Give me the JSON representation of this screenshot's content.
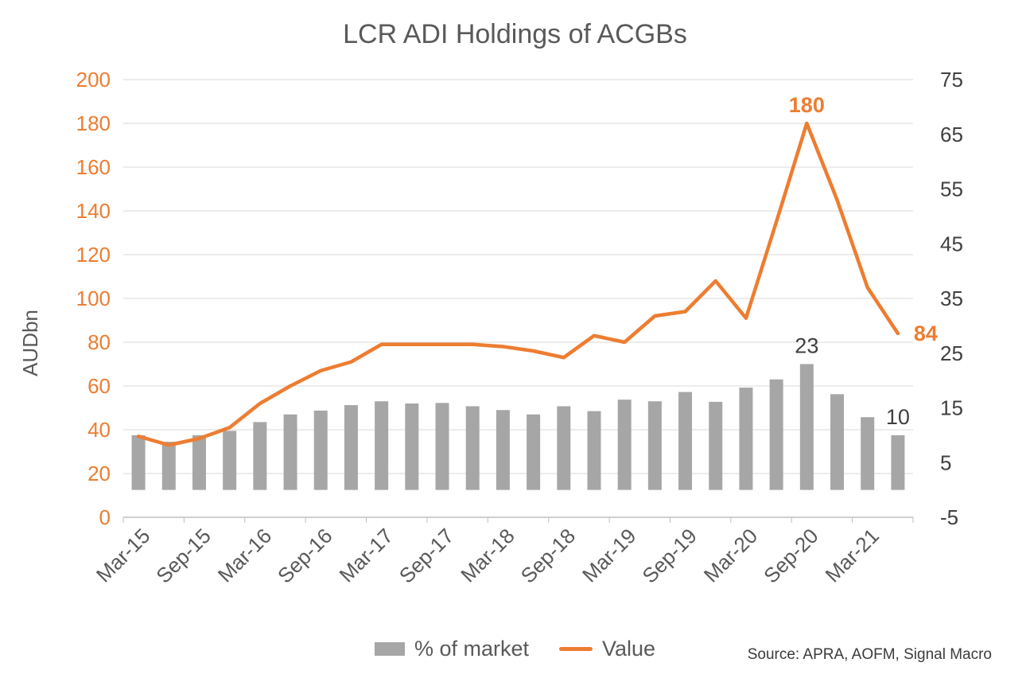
{
  "title": "LCR ADI Holdings of ACGBs",
  "source": "Source: APRA, AOFM, Signal Macro",
  "legend": [
    {
      "label": "% of market",
      "swatch": "bar",
      "color": "#A6A6A6"
    },
    {
      "label": "Value",
      "swatch": "line",
      "color": "#ED7D31"
    }
  ],
  "chart_data": {
    "type": "bar",
    "subtype": "combo bar + line, dual axis",
    "categories": [
      "Mar-15",
      "Jun-15",
      "Sep-15",
      "Dec-15",
      "Mar-16",
      "Jun-16",
      "Sep-16",
      "Dec-16",
      "Mar-17",
      "Jun-17",
      "Sep-17",
      "Dec-17",
      "Mar-18",
      "Jun-18",
      "Sep-18",
      "Dec-18",
      "Mar-19",
      "Jun-19",
      "Sep-19",
      "Dec-19",
      "Mar-20",
      "Jun-20",
      "Sep-20",
      "Dec-20",
      "Mar-21",
      "Jun-21"
    ],
    "x_tick_labels": [
      "Mar-15",
      "Sep-15",
      "Mar-16",
      "Sep-16",
      "Mar-17",
      "Sep-17",
      "Mar-18",
      "Sep-18",
      "Mar-19",
      "Sep-19",
      "Mar-20",
      "Sep-20",
      "Mar-21"
    ],
    "series": [
      {
        "name": "% of market",
        "type": "bar",
        "axis": "right",
        "color": "#A6A6A6",
        "values": [
          10,
          8.8,
          10,
          10.8,
          12.4,
          13.8,
          14.5,
          15.5,
          16.2,
          15.8,
          15.9,
          15.3,
          14.6,
          13.8,
          15.3,
          14.4,
          16.5,
          16.2,
          17.9,
          16.1,
          18.7,
          20.2,
          23,
          17.5,
          13.3,
          10
        ]
      },
      {
        "name": "Value",
        "type": "line",
        "axis": "left",
        "color": "#ED7D31",
        "values": [
          37,
          33,
          36,
          41,
          52,
          60,
          67,
          71,
          79,
          79,
          79,
          79,
          78,
          76,
          73,
          83,
          80,
          92,
          94,
          108,
          91,
          135,
          180,
          145,
          105,
          84
        ]
      }
    ],
    "left_axis": {
      "label": "AUDbn",
      "min": 0,
      "max": 200,
      "step": 20,
      "ticks": [
        0,
        20,
        40,
        60,
        80,
        100,
        120,
        140,
        160,
        180,
        200
      ],
      "color": "#ED7D31"
    },
    "right_axis": {
      "label": "",
      "min": -5,
      "max": 75,
      "step": 10,
      "ticks": [
        -5,
        5,
        15,
        25,
        35,
        45,
        55,
        65,
        75
      ],
      "color": "#404040"
    },
    "annotations": [
      {
        "text": "180",
        "series": "Value",
        "index": 22,
        "placement": "above",
        "color": "#ED7D31",
        "bold": true
      },
      {
        "text": "84",
        "series": "Value",
        "index": 25,
        "placement": "right",
        "color": "#ED7D31",
        "bold": true
      },
      {
        "text": "23",
        "series": "% of market",
        "index": 22,
        "placement": "above",
        "color": "#404040",
        "bold": false
      },
      {
        "text": "10",
        "series": "% of market",
        "index": 25,
        "placement": "above",
        "color": "#404040",
        "bold": false
      }
    ],
    "grid": "horizontal",
    "legend_position": "bottom",
    "styles": {
      "text_color": "#595959",
      "gridline_color": "#D9D9D9",
      "axis_line_color": "#BFBFBF",
      "background": "#FFFFFF"
    }
  }
}
